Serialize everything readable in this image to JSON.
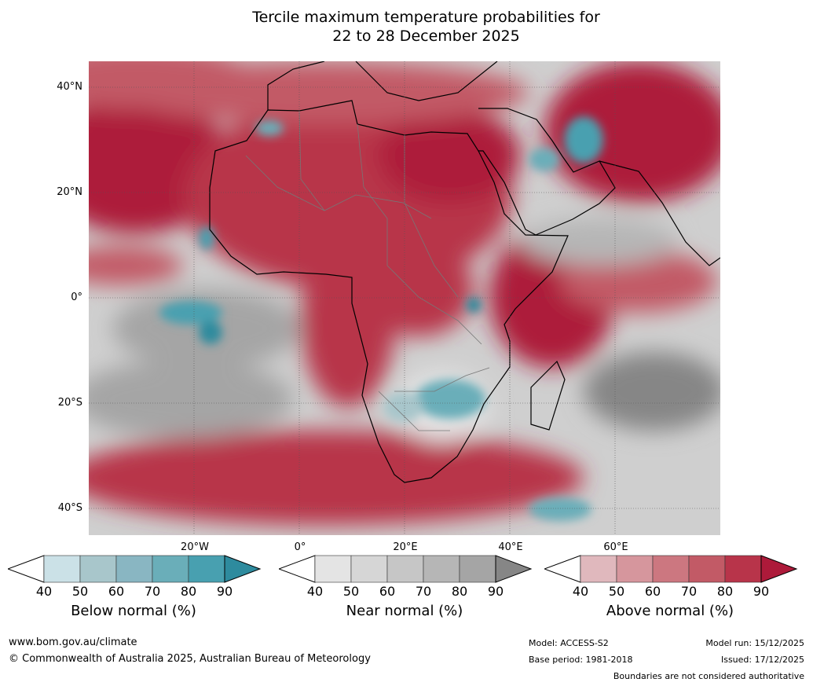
{
  "title": {
    "line1": "Tercile maximum temperature probabilities for",
    "line2": "22 to 28 December 2025"
  },
  "map": {
    "lat_labels": [
      "40°N",
      "20°N",
      "0°",
      "20°S",
      "40°S"
    ],
    "lon_labels": [
      "20°W",
      "0°",
      "20°E",
      "40°E",
      "60°E"
    ]
  },
  "colorbars": [
    {
      "title": "Below normal (%)",
      "ticks": [
        "40",
        "50",
        "60",
        "70",
        "80",
        "90"
      ],
      "colors": [
        "#cbe1e7",
        "#a8c6cb",
        "#89b6c2",
        "#6aaeb9",
        "#48a0b0",
        "#2e8b9e"
      ]
    },
    {
      "title": "Near normal (%)",
      "ticks": [
        "40",
        "50",
        "60",
        "70",
        "80",
        "90"
      ],
      "colors": [
        "#e4e4e4",
        "#d6d6d6",
        "#c6c6c6",
        "#b6b6b6",
        "#a5a5a5",
        "#868686"
      ]
    },
    {
      "title": "Above normal (%)",
      "ticks": [
        "40",
        "50",
        "60",
        "70",
        "80",
        "90"
      ],
      "colors": [
        "#e0b8bd",
        "#d6969d",
        "#cc7780",
        "#c25a66",
        "#b8344a",
        "#ad1a3a"
      ]
    }
  ],
  "footer": {
    "url": "www.bom.gov.au/climate",
    "copyright": "© Commonwealth of Australia 2025, Australian Bureau of Meteorology",
    "model": "Model: ACCESS-S2",
    "base_period": "Base period: 1981-2018",
    "model_run": "Model run: 15/12/2025",
    "issued": "Issued: 17/12/2025",
    "disclaimer": "Boundaries are not considered authoritative"
  }
}
